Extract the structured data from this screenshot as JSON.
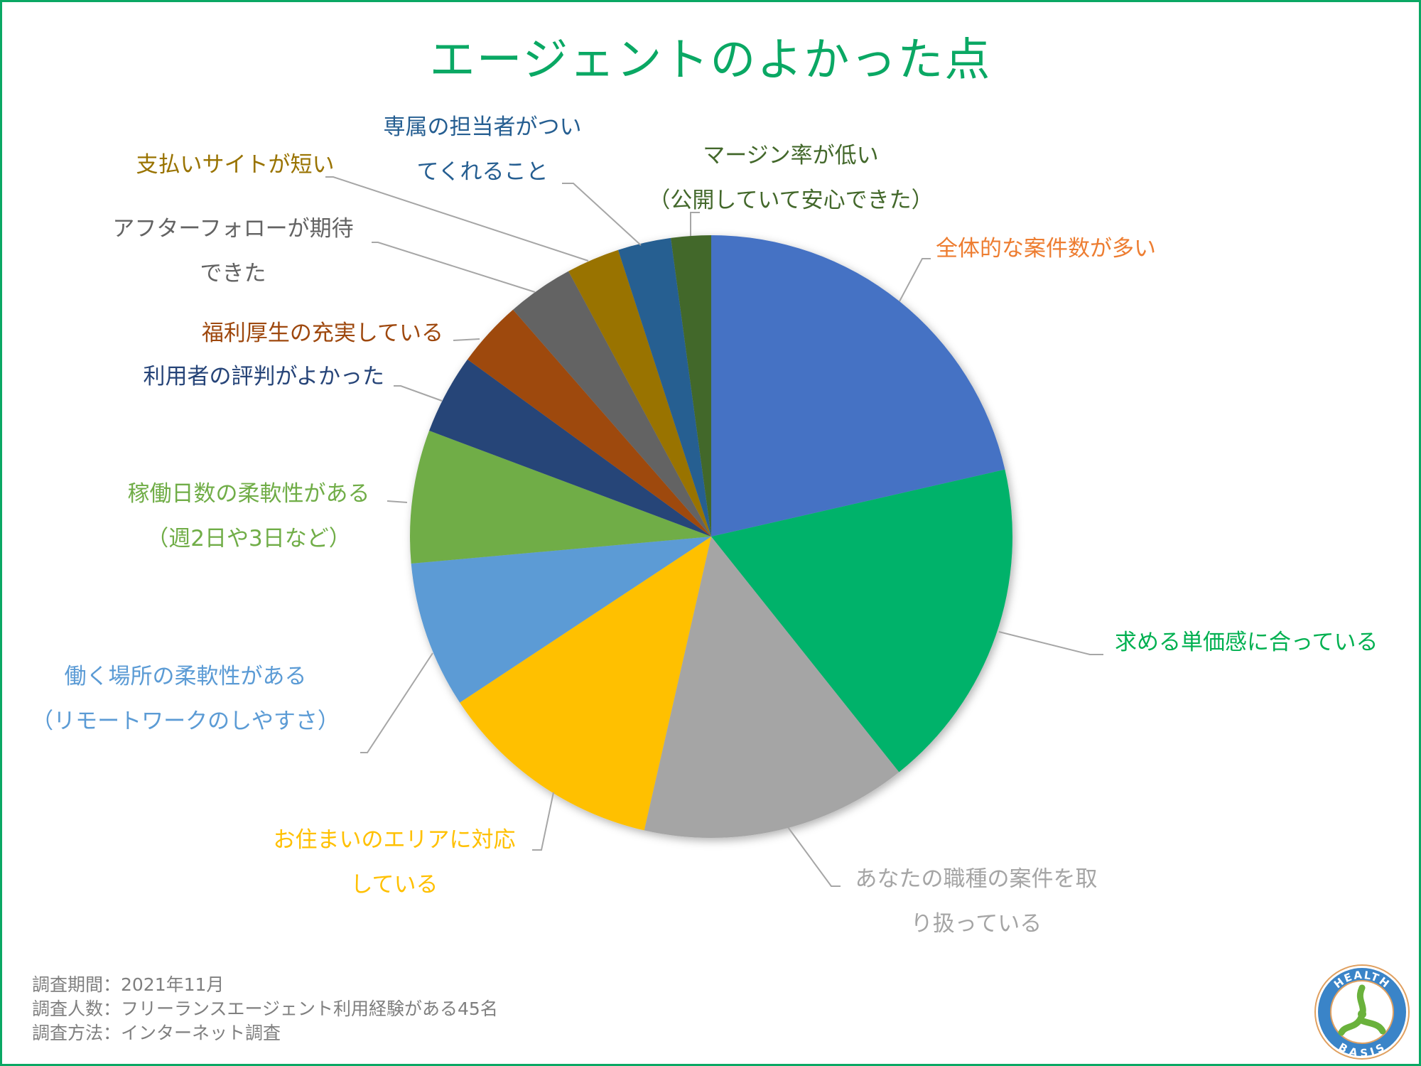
{
  "chart_data": {
    "type": "pie",
    "title": "エージェントのよかった点",
    "start": "top",
    "direction": "clockwise",
    "slices": [
      {
        "label": [
          "全体的な案件数が多い"
        ],
        "value": 30,
        "color": "#4472c4",
        "label_color": "#ed7d31"
      },
      {
        "label": [
          "求める単価感に合っている"
        ],
        "value": 25,
        "color": "#00b26b",
        "label_color": "#00b050"
      },
      {
        "label": [
          "あなたの職種の案件を取",
          "り扱っている"
        ],
        "value": 20,
        "color": "#a5a5a5",
        "label_color": "#a5a5a5"
      },
      {
        "label": [
          "お住まいのエリアに対応",
          "している"
        ],
        "value": 17,
        "color": "#ffc000",
        "label_color": "#ffc000"
      },
      {
        "label": [
          "働く場所の柔軟性がある",
          "（リモートワークのしやすさ）"
        ],
        "value": 11,
        "color": "#5b9bd5",
        "label_color": "#5b9bd5"
      },
      {
        "label": [
          "稼働日数の柔軟性がある",
          "（週2日や3日など）"
        ],
        "value": 10,
        "color": "#70ad47",
        "label_color": "#70ad47"
      },
      {
        "label": [
          "利用者の評判がよかった"
        ],
        "value": 6,
        "color": "#264478",
        "label_color": "#264478"
      },
      {
        "label": [
          "福利厚生の充実している"
        ],
        "value": 5,
        "color": "#9e480e",
        "label_color": "#9e480e"
      },
      {
        "label": [
          "アフターフォローが期待",
          "できた"
        ],
        "value": 5,
        "color": "#636363",
        "label_color": "#636363"
      },
      {
        "label": [
          "支払いサイトが短い"
        ],
        "value": 4,
        "color": "#997300",
        "label_color": "#997300"
      },
      {
        "label": [
          "専属の担当者がつい",
          "てくれること"
        ],
        "value": 4,
        "color": "#255e91",
        "label_color": "#255e91"
      },
      {
        "label": [
          "マージン率が低い",
          "（公開していて安心できた）"
        ],
        "value": 3,
        "color": "#43682b",
        "label_color": "#43682b"
      }
    ]
  },
  "footer": {
    "period": "調査期間：2021年11月",
    "respondents": "調査人数：フリーランスエージェント利用経験がある45名",
    "method": "調査方法：インターネット調査"
  },
  "logo": {
    "top_text": "HEALTH",
    "bottom_text": "BASIS"
  }
}
